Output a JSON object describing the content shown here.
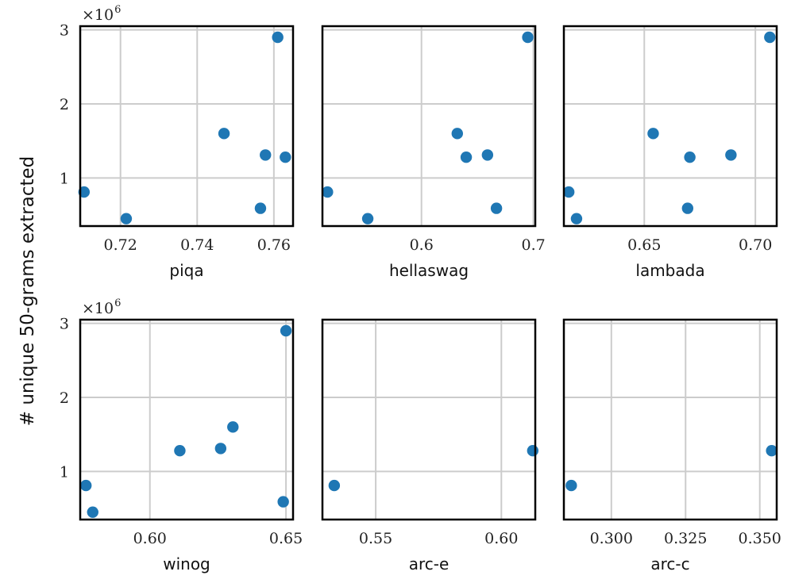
{
  "figure": {
    "ylabel": "# unique 50-grams extracted",
    "y_multiplier": "×10",
    "y_multiplier_exponent": "6",
    "colors": {
      "marker": "#1f77b4",
      "grid": "#cccccc",
      "axes": "#000000"
    }
  },
  "chart_data": [
    {
      "type": "scatter",
      "xlabel": "piqa",
      "ylabel": "# unique 50-grams extracted",
      "xlim": [
        0.7095,
        0.765
      ],
      "ylim": [
        350000,
        3050000
      ],
      "xticks": [
        0.72,
        0.74,
        0.76
      ],
      "xtick_labels": [
        "0.72",
        "0.74",
        "0.76"
      ],
      "yticks": [
        1000000,
        2000000,
        3000000
      ],
      "ytick_labels": [
        "1",
        "2",
        "3"
      ],
      "points": [
        {
          "x": 0.7105,
          "y": 810000
        },
        {
          "x": 0.7215,
          "y": 450000
        },
        {
          "x": 0.747,
          "y": 1600000
        },
        {
          "x": 0.7565,
          "y": 590000
        },
        {
          "x": 0.7578,
          "y": 1310000
        },
        {
          "x": 0.761,
          "y": 2900000
        },
        {
          "x": 0.763,
          "y": 1280000
        }
      ]
    },
    {
      "type": "scatter",
      "xlabel": "hellaswag",
      "ylabel": "# unique 50-grams extracted",
      "xlim": [
        0.5115,
        0.7017
      ],
      "ylim": [
        350000,
        3050000
      ],
      "xticks": [
        0.6,
        0.7
      ],
      "xtick_labels": [
        "0.6",
        "0.7"
      ],
      "yticks": [
        1000000,
        2000000,
        3000000
      ],
      "ytick_labels": [
        "1",
        "2",
        "3"
      ],
      "points": [
        {
          "x": 0.516,
          "y": 810000
        },
        {
          "x": 0.552,
          "y": 450000
        },
        {
          "x": 0.632,
          "y": 1600000
        },
        {
          "x": 0.64,
          "y": 1280000
        },
        {
          "x": 0.659,
          "y": 1310000
        },
        {
          "x": 0.667,
          "y": 590000
        },
        {
          "x": 0.695,
          "y": 2900000
        }
      ]
    },
    {
      "type": "scatter",
      "xlabel": "lambada",
      "ylabel": "# unique 50-grams extracted",
      "xlim": [
        0.6138,
        0.7096
      ],
      "ylim": [
        350000,
        3050000
      ],
      "xticks": [
        0.65,
        0.7
      ],
      "xtick_labels": [
        "0.65",
        "0.70"
      ],
      "yticks": [
        1000000,
        2000000,
        3000000
      ],
      "ytick_labels": [
        "1",
        "2",
        "3"
      ],
      "points": [
        {
          "x": 0.616,
          "y": 810000
        },
        {
          "x": 0.6195,
          "y": 450000
        },
        {
          "x": 0.654,
          "y": 1600000
        },
        {
          "x": 0.6695,
          "y": 590000
        },
        {
          "x": 0.6705,
          "y": 1280000
        },
        {
          "x": 0.689,
          "y": 1310000
        },
        {
          "x": 0.7065,
          "y": 2900000
        }
      ]
    },
    {
      "type": "scatter",
      "xlabel": "winog",
      "ylabel": "# unique 50-grams extracted",
      "xlim": [
        0.5744,
        0.6526
      ],
      "ylim": [
        350000,
        3050000
      ],
      "xticks": [
        0.6,
        0.65
      ],
      "xtick_labels": [
        "0.60",
        "0.65"
      ],
      "yticks": [
        1000000,
        2000000,
        3000000
      ],
      "ytick_labels": [
        "1",
        "2",
        "3"
      ],
      "points": [
        {
          "x": 0.5765,
          "y": 810000
        },
        {
          "x": 0.579,
          "y": 450000
        },
        {
          "x": 0.611,
          "y": 1280000
        },
        {
          "x": 0.626,
          "y": 1310000
        },
        {
          "x": 0.6305,
          "y": 1600000
        },
        {
          "x": 0.649,
          "y": 590000
        },
        {
          "x": 0.65,
          "y": 2900000
        }
      ]
    },
    {
      "type": "scatter",
      "xlabel": "arc-e",
      "ylabel": "# unique 50-grams extracted",
      "xlim": [
        0.5288,
        0.6135
      ],
      "ylim": [
        350000,
        3050000
      ],
      "xticks": [
        0.55,
        0.6
      ],
      "xtick_labels": [
        "0.55",
        "0.60"
      ],
      "yticks": [
        1000000,
        2000000,
        3000000
      ],
      "ytick_labels": [
        "1",
        "2",
        "3"
      ],
      "points": [
        {
          "x": 0.5335,
          "y": 810000
        },
        {
          "x": 0.6125,
          "y": 1280000
        }
      ]
    },
    {
      "type": "scatter",
      "xlabel": "arc-c",
      "ylabel": "# unique 50-grams extracted",
      "xlim": [
        0.284,
        0.3557
      ],
      "ylim": [
        350000,
        3050000
      ],
      "xticks": [
        0.3,
        0.325,
        0.35
      ],
      "xtick_labels": [
        "0.300",
        "0.325",
        "0.350"
      ],
      "yticks": [
        1000000,
        2000000,
        3000000
      ],
      "ytick_labels": [
        "1",
        "2",
        "3"
      ],
      "points": [
        {
          "x": 0.2865,
          "y": 810000
        },
        {
          "x": 0.354,
          "y": 1280000
        }
      ]
    }
  ]
}
